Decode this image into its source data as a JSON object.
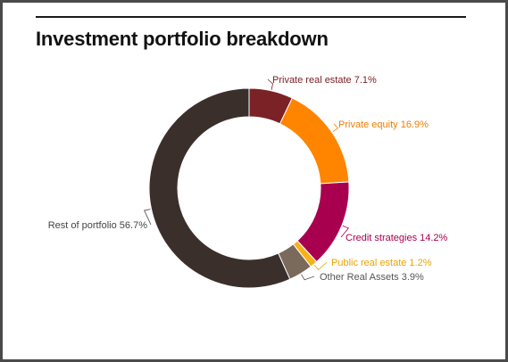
{
  "chart_data": {
    "type": "pie",
    "donut": true,
    "title": "Investment portfolio breakdown",
    "slices": [
      {
        "label": "Private real estate 7.1%",
        "value": 7.1,
        "color": "#7a2226",
        "label_color": "#7a2226"
      },
      {
        "label": "Private equity 16.9%",
        "value": 16.9,
        "color": "#ff8400",
        "label_color": "#f07d00"
      },
      {
        "label": "Credit strategies 14.2%",
        "value": 14.2,
        "color": "#a8004f",
        "label_color": "#a8004f"
      },
      {
        "label": "Public real estate 1.2%",
        "value": 1.2,
        "color": "#f7b21a",
        "label_color": "#e9a400"
      },
      {
        "label": "Other Real Assets 3.9%",
        "value": 3.9,
        "color": "#7a6a5c",
        "label_color": "#555555"
      },
      {
        "label": "Rest of portfolio 56.7%",
        "value": 56.7,
        "color": "#3b2f2c",
        "label_color": "#444444"
      }
    ]
  }
}
